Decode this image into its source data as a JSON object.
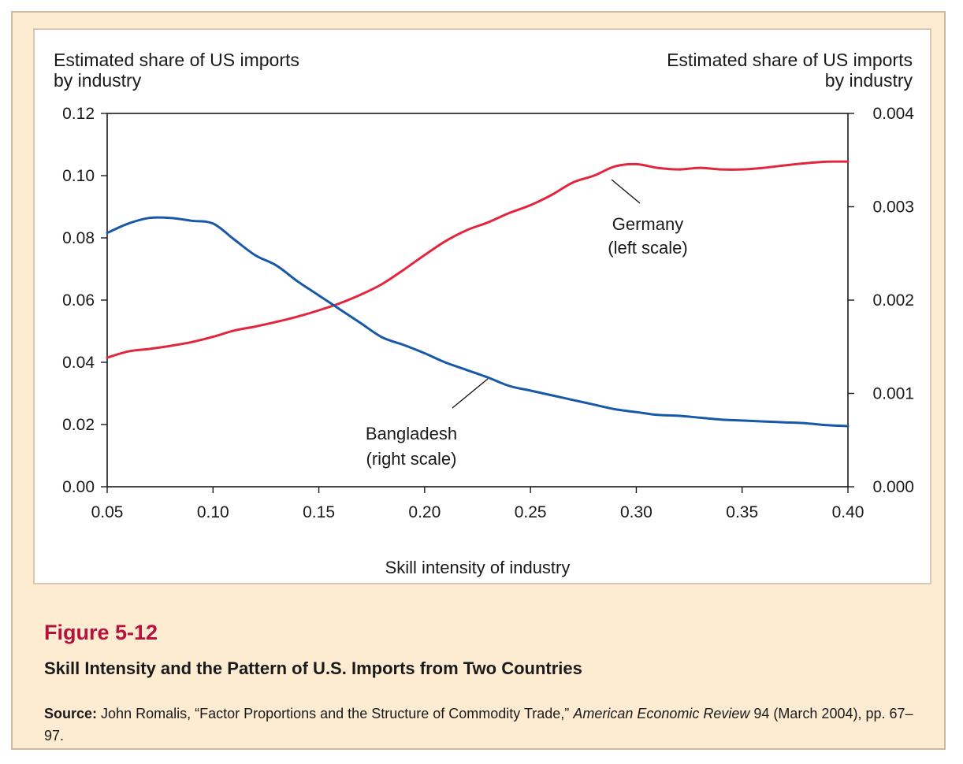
{
  "figure": {
    "number": "Figure 5-12",
    "title": "Skill Intensity and the Pattern of U.S. Imports from Two Countries",
    "source_label": "Source:",
    "source_pre": "John Romalis, “Factor Proportions and the Structure of Commodity Trade,”",
    "source_journal": "American Economic Review",
    "source_post": "94 (March 2004), pp. 67–97."
  },
  "colors": {
    "germany": "#e1263d",
    "bangladesh": "#1759a8",
    "background": "#fdecd2",
    "figure_number": "#b5123d"
  },
  "chart_data": {
    "type": "line",
    "xlabel": "Skill intensity of industry",
    "ylabel_left": [
      "Estimated share of US imports",
      "by industry"
    ],
    "ylabel_right": [
      "Estimated share of US imports",
      "by industry"
    ],
    "xlim": [
      0.05,
      0.4
    ],
    "ylim_left": [
      0.0,
      0.12
    ],
    "ylim_right": [
      0.0,
      0.004
    ],
    "xticks": [
      "0.05",
      "0.10",
      "0.15",
      "0.20",
      "0.25",
      "0.30",
      "0.35",
      "0.40"
    ],
    "yticks_left": [
      "0.00",
      "0.02",
      "0.04",
      "0.06",
      "0.08",
      "0.10",
      "0.12"
    ],
    "yticks_right": [
      "0.000",
      "0.001",
      "0.002",
      "0.003",
      "0.004"
    ],
    "grid": false,
    "series": [
      {
        "name": "Germany",
        "axis": "left",
        "annotation": [
          "Germany",
          "(left scale)"
        ],
        "x": [
          0.05,
          0.06,
          0.07,
          0.08,
          0.09,
          0.1,
          0.11,
          0.12,
          0.13,
          0.14,
          0.15,
          0.16,
          0.17,
          0.18,
          0.19,
          0.2,
          0.21,
          0.22,
          0.23,
          0.24,
          0.25,
          0.26,
          0.27,
          0.28,
          0.29,
          0.3,
          0.31,
          0.32,
          0.33,
          0.34,
          0.35,
          0.36,
          0.37,
          0.38,
          0.39,
          0.4
        ],
        "y": [
          0.0415,
          0.0435,
          0.0443,
          0.0453,
          0.0465,
          0.0482,
          0.0502,
          0.0515,
          0.053,
          0.0547,
          0.0567,
          0.059,
          0.0618,
          0.0652,
          0.0697,
          0.0745,
          0.079,
          0.0825,
          0.085,
          0.088,
          0.0905,
          0.0938,
          0.0978,
          0.1,
          0.103,
          0.1037,
          0.1025,
          0.102,
          0.1025,
          0.102,
          0.102,
          0.1025,
          0.1033,
          0.104,
          0.1045,
          0.1045
        ]
      },
      {
        "name": "Bangladesh",
        "axis": "right",
        "annotation": [
          "Bangladesh",
          "(right scale)"
        ],
        "x": [
          0.05,
          0.06,
          0.07,
          0.08,
          0.09,
          0.1,
          0.11,
          0.12,
          0.13,
          0.14,
          0.15,
          0.16,
          0.17,
          0.18,
          0.19,
          0.2,
          0.21,
          0.22,
          0.23,
          0.24,
          0.25,
          0.26,
          0.27,
          0.28,
          0.29,
          0.3,
          0.31,
          0.32,
          0.33,
          0.34,
          0.35,
          0.36,
          0.37,
          0.38,
          0.39,
          0.4
        ],
        "y": [
          0.00272,
          0.00282,
          0.00288,
          0.00288,
          0.00285,
          0.00282,
          0.00265,
          0.00248,
          0.00237,
          0.0022,
          0.00205,
          0.0019,
          0.00175,
          0.0016,
          0.00152,
          0.00143,
          0.00133,
          0.00125,
          0.00117,
          0.00108,
          0.00103,
          0.00098,
          0.00093,
          0.00088,
          0.00083,
          0.0008,
          0.00077,
          0.00076,
          0.00074,
          0.00072,
          0.00071,
          0.0007,
          0.00069,
          0.00068,
          0.00066,
          0.00065
        ]
      }
    ]
  }
}
